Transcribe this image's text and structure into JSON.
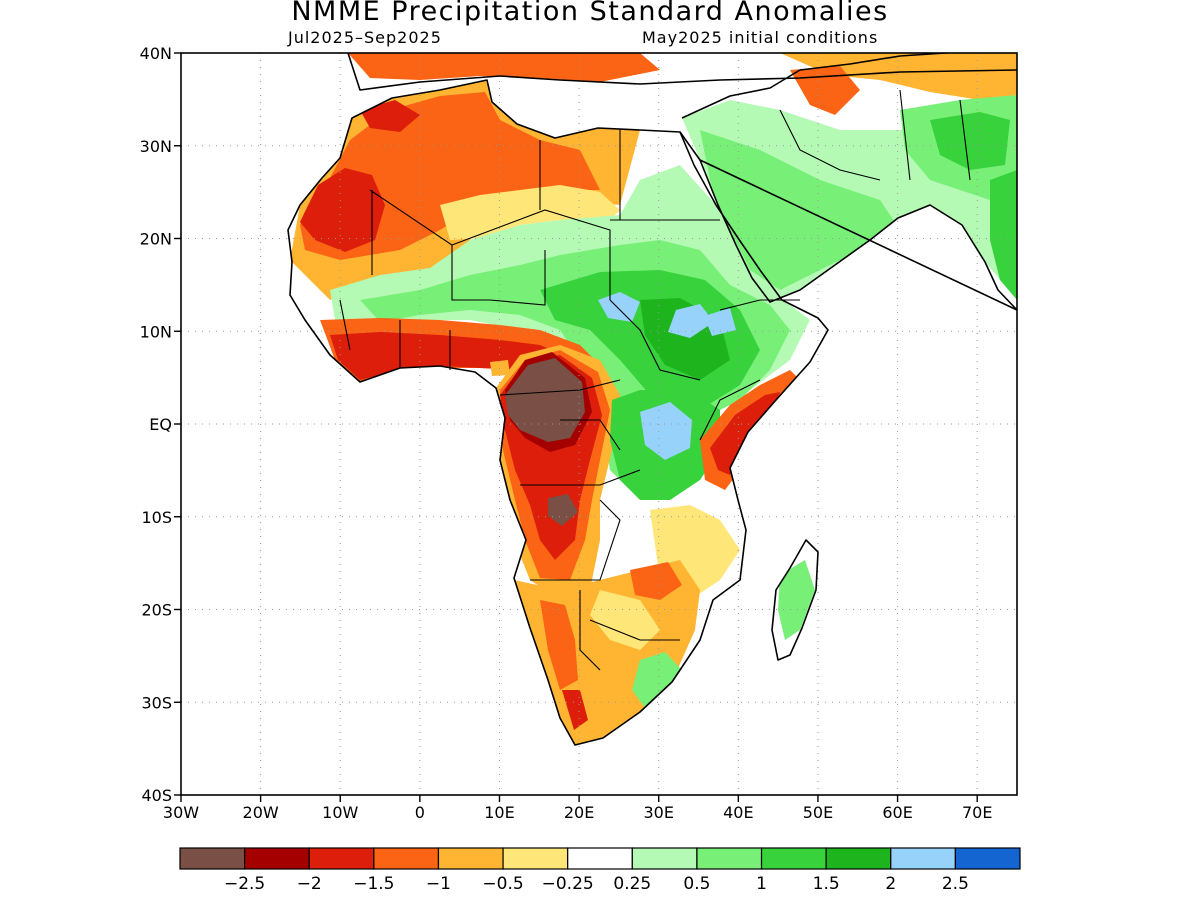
{
  "title": "NMME Precipitation Standard Anomalies",
  "subtitle_left": "Jul2025–Sep2025",
  "subtitle_right": "May2025 initial conditions",
  "map": {
    "lon_range": [
      -30,
      75
    ],
    "lat_range": [
      -40,
      40
    ],
    "lat_ticks": [
      {
        "value": 40,
        "label": "40N"
      },
      {
        "value": 30,
        "label": "30N"
      },
      {
        "value": 20,
        "label": "20N"
      },
      {
        "value": 10,
        "label": "10N"
      },
      {
        "value": 0,
        "label": "EQ"
      },
      {
        "value": -10,
        "label": "10S"
      },
      {
        "value": -20,
        "label": "20S"
      },
      {
        "value": -30,
        "label": "30S"
      },
      {
        "value": -40,
        "label": "40S"
      }
    ],
    "lon_ticks": [
      {
        "value": -30,
        "label": "30W"
      },
      {
        "value": -20,
        "label": "20W"
      },
      {
        "value": -10,
        "label": "10W"
      },
      {
        "value": 0,
        "label": "0"
      },
      {
        "value": 10,
        "label": "10E"
      },
      {
        "value": 20,
        "label": "20E"
      },
      {
        "value": 30,
        "label": "30E"
      },
      {
        "value": 40,
        "label": "40E"
      },
      {
        "value": 50,
        "label": "50E"
      },
      {
        "value": 60,
        "label": "60E"
      },
      {
        "value": 70,
        "label": "70E"
      }
    ],
    "gridlines": "dotted",
    "colors": {
      "lt_-2.5": "#7a4f45",
      "-2.5_-2": "#a50000",
      "-2_-1.5": "#dc1e0a",
      "-1.5_-1": "#fa6414",
      "-1_-0.5": "#ffb432",
      "-0.5_-0.25": "#ffe678",
      "-0.25_0.25": "#ffffff",
      "0.25_0.5": "#b4fab4",
      "0.5_1": "#78f078",
      "1_1.5": "#37d23c",
      "1.5_2": "#1eb41e",
      "2_2.5": "#96d2fa",
      "gt_2.5": "#1464d2"
    }
  },
  "colorbar": {
    "colors": [
      "#7a4f45",
      "#a50000",
      "#dc1e0a",
      "#fa6414",
      "#ffb432",
      "#ffe678",
      "#ffffff",
      "#b4fab4",
      "#78f078",
      "#37d23c",
      "#1eb41e",
      "#96d2fa",
      "#1464d2"
    ],
    "labels": [
      "−2.5",
      "−2",
      "−1.5",
      "−1",
      "−0.5",
      "−0.25",
      "0.25",
      "0.5",
      "1",
      "1.5",
      "2",
      "2.5"
    ]
  }
}
